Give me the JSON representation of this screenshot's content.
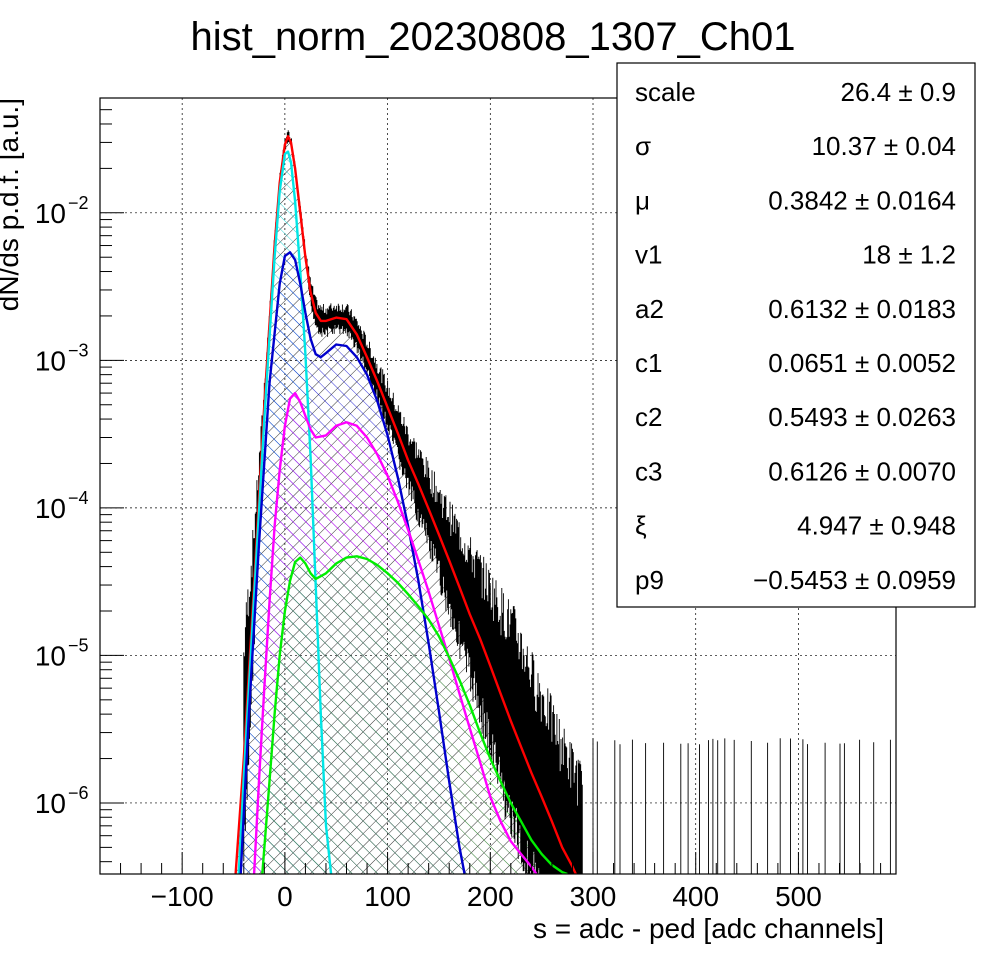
{
  "chart_data": {
    "type": "line",
    "title": "hist_norm_20230808_1307_Ch01",
    "xlabel": "s = adc - ped [adc channels]",
    "ylabel": "dN/ds p.d.f. [a.u.]",
    "xlim": [
      -180,
      595
    ],
    "ylim": [
      3.3e-07,
      0.06
    ],
    "yscale": "log",
    "grid": true,
    "xticks": [
      {
        "value": -100,
        "label": "−100"
      },
      {
        "value": 0,
        "label": "0"
      },
      {
        "value": 100,
        "label": "100"
      },
      {
        "value": 200,
        "label": "200"
      },
      {
        "value": 300,
        "label": "300"
      },
      {
        "value": 400,
        "label": "400"
      },
      {
        "value": 500,
        "label": "500"
      }
    ],
    "yticks": [
      {
        "value": 0.01,
        "base": "10",
        "exp": "−2"
      },
      {
        "value": 0.001,
        "base": "10",
        "exp": "−3"
      },
      {
        "value": 0.0001,
        "base": "10",
        "exp": "−4"
      },
      {
        "value": 1e-05,
        "base": "10",
        "exp": "−5"
      },
      {
        "value": 1e-06,
        "base": "10",
        "exp": "−6"
      }
    ],
    "legend_placement": "top-right",
    "fit_parameters": [
      {
        "name": "scale",
        "value": "26.4",
        "error": "0.9"
      },
      {
        "name": "σ",
        "value": "10.37",
        "error": "0.04"
      },
      {
        "name": "μ",
        "value": "0.3842",
        "error": "0.0164"
      },
      {
        "name": "v1",
        "value": "18",
        "error": "1.2"
      },
      {
        "name": "a2",
        "value": "0.6132",
        "error": "0.0183"
      },
      {
        "name": "c1",
        "value": "0.0651",
        "error": "0.0052"
      },
      {
        "name": "c2",
        "value": "0.5493",
        "error": "0.0263"
      },
      {
        "name": "c3",
        "value": "0.6126",
        "error": "0.0070"
      },
      {
        "name": "ξ",
        "value": "4.947",
        "error": "0.948"
      },
      {
        "name": "p9",
        "value": "−0.5453",
        "error": "0.0959"
      }
    ],
    "series": [
      {
        "color": "#ff0000",
        "style": "total fit",
        "x": [
          -48,
          -40,
          -30,
          -20,
          -10,
          -5,
          0,
          3,
          6,
          10,
          15,
          20,
          25,
          30,
          35,
          40,
          50,
          60,
          70,
          80,
          90,
          100,
          110,
          120,
          130,
          140,
          150,
          160,
          170,
          180,
          190,
          200,
          210,
          220,
          230,
          240,
          250,
          260,
          270,
          280,
          290
        ],
        "y": [
          3.3e-07,
          2e-06,
          3e-05,
          0.0005,
          0.006,
          0.016,
          0.029,
          0.033,
          0.03,
          0.02,
          0.01,
          0.005,
          0.0029,
          0.0021,
          0.00185,
          0.00185,
          0.00195,
          0.0019,
          0.0015,
          0.00105,
          0.00072,
          0.00048,
          0.00032,
          0.00021,
          0.000145,
          9.8e-05,
          6.6e-05,
          4.4e-05,
          2.9e-05,
          1.9e-05,
          1.3e-05,
          8.5e-06,
          5.5e-06,
          3.6e-06,
          2.4e-06,
          1.6e-06,
          1.1e-06,
          7.5e-07,
          5e-07,
          3.7e-07,
          2.6e-07
        ]
      },
      {
        "color": "#00e5e5",
        "style": "pedestal component",
        "x": [
          -45,
          -40,
          -30,
          -20,
          -10,
          -5,
          0,
          3,
          6,
          10,
          15,
          20,
          25,
          30,
          35,
          40,
          45,
          50
        ],
        "y": [
          3.3e-07,
          1.5e-06,
          2.5e-05,
          0.0004,
          0.005,
          0.014,
          0.025,
          0.026,
          0.022,
          0.012,
          0.004,
          0.0011,
          0.00022,
          3e-05,
          4e-06,
          7e-07,
          3.3e-07,
          2e-07
        ]
      },
      {
        "color": "#0000cc",
        "style": "1 p.e. component",
        "x": [
          -43,
          -35,
          -25,
          -15,
          -5,
          0,
          5,
          10,
          15,
          20,
          25,
          30,
          35,
          40,
          50,
          60,
          70,
          80,
          90,
          100,
          110,
          120,
          130,
          140,
          150,
          160,
          170,
          175
        ],
        "y": [
          3.3e-07,
          4e-06,
          6e-05,
          0.0007,
          0.0033,
          0.0051,
          0.0054,
          0.0048,
          0.0033,
          0.0021,
          0.0014,
          0.0011,
          0.00105,
          0.00112,
          0.00128,
          0.00125,
          0.00105,
          0.0008,
          0.00053,
          0.00031,
          0.00016,
          7.5e-05,
          3.2e-05,
          1.2e-05,
          4.2e-06,
          1.4e-06,
          5e-07,
          3.3e-07
        ]
      },
      {
        "color": "#ff00ff",
        "style": "2 p.e. component",
        "x": [
          -30,
          -25,
          -20,
          -15,
          -10,
          -5,
          0,
          5,
          10,
          15,
          20,
          25,
          30,
          40,
          50,
          60,
          70,
          80,
          90,
          100,
          110,
          120,
          130,
          140,
          150,
          160,
          170,
          180,
          190,
          200,
          210,
          220,
          230,
          240,
          245
        ],
        "y": [
          3.3e-07,
          1.5e-06,
          6e-06,
          2.3e-05,
          7.5e-05,
          0.00018,
          0.00036,
          0.00055,
          0.0006,
          0.00052,
          0.00042,
          0.00034,
          0.0003,
          0.00031,
          0.00036,
          0.00038,
          0.00036,
          0.0003,
          0.00023,
          0.000165,
          0.00011,
          7.1e-05,
          4.4e-05,
          2.7e-05,
          1.6e-05,
          9.5e-06,
          5.5e-06,
          3.2e-06,
          1.9e-06,
          1.1e-06,
          7.5e-07,
          5.5e-07,
          4.5e-07,
          3.7e-07,
          3.3e-07
        ]
      },
      {
        "color": "#00ee00",
        "style": "3 p.e. component",
        "x": [
          -22,
          -15,
          -10,
          -5,
          0,
          5,
          10,
          15,
          20,
          25,
          30,
          40,
          50,
          60,
          70,
          80,
          90,
          100,
          110,
          120,
          130,
          140,
          150,
          160,
          170,
          180,
          190,
          200,
          210,
          220,
          230,
          240,
          250,
          260,
          270,
          275
        ],
        "y": [
          3.3e-07,
          1.4e-06,
          4e-06,
          1e-05,
          2e-05,
          3.2e-05,
          4.3e-05,
          4.6e-05,
          4.2e-05,
          3.6e-05,
          3.3e-05,
          3.6e-05,
          4.2e-05,
          4.6e-05,
          4.7e-05,
          4.5e-05,
          4.1e-05,
          3.6e-05,
          3.1e-05,
          2.6e-05,
          2.15e-05,
          1.75e-05,
          1.35e-05,
          9.7e-06,
          6.8e-06,
          4.6e-06,
          3e-06,
          2e-06,
          1.4e-06,
          1e-06,
          7.5e-07,
          5.6e-07,
          4.5e-07,
          3.8e-07,
          3.4e-07,
          3.3e-07
        ]
      }
    ]
  }
}
